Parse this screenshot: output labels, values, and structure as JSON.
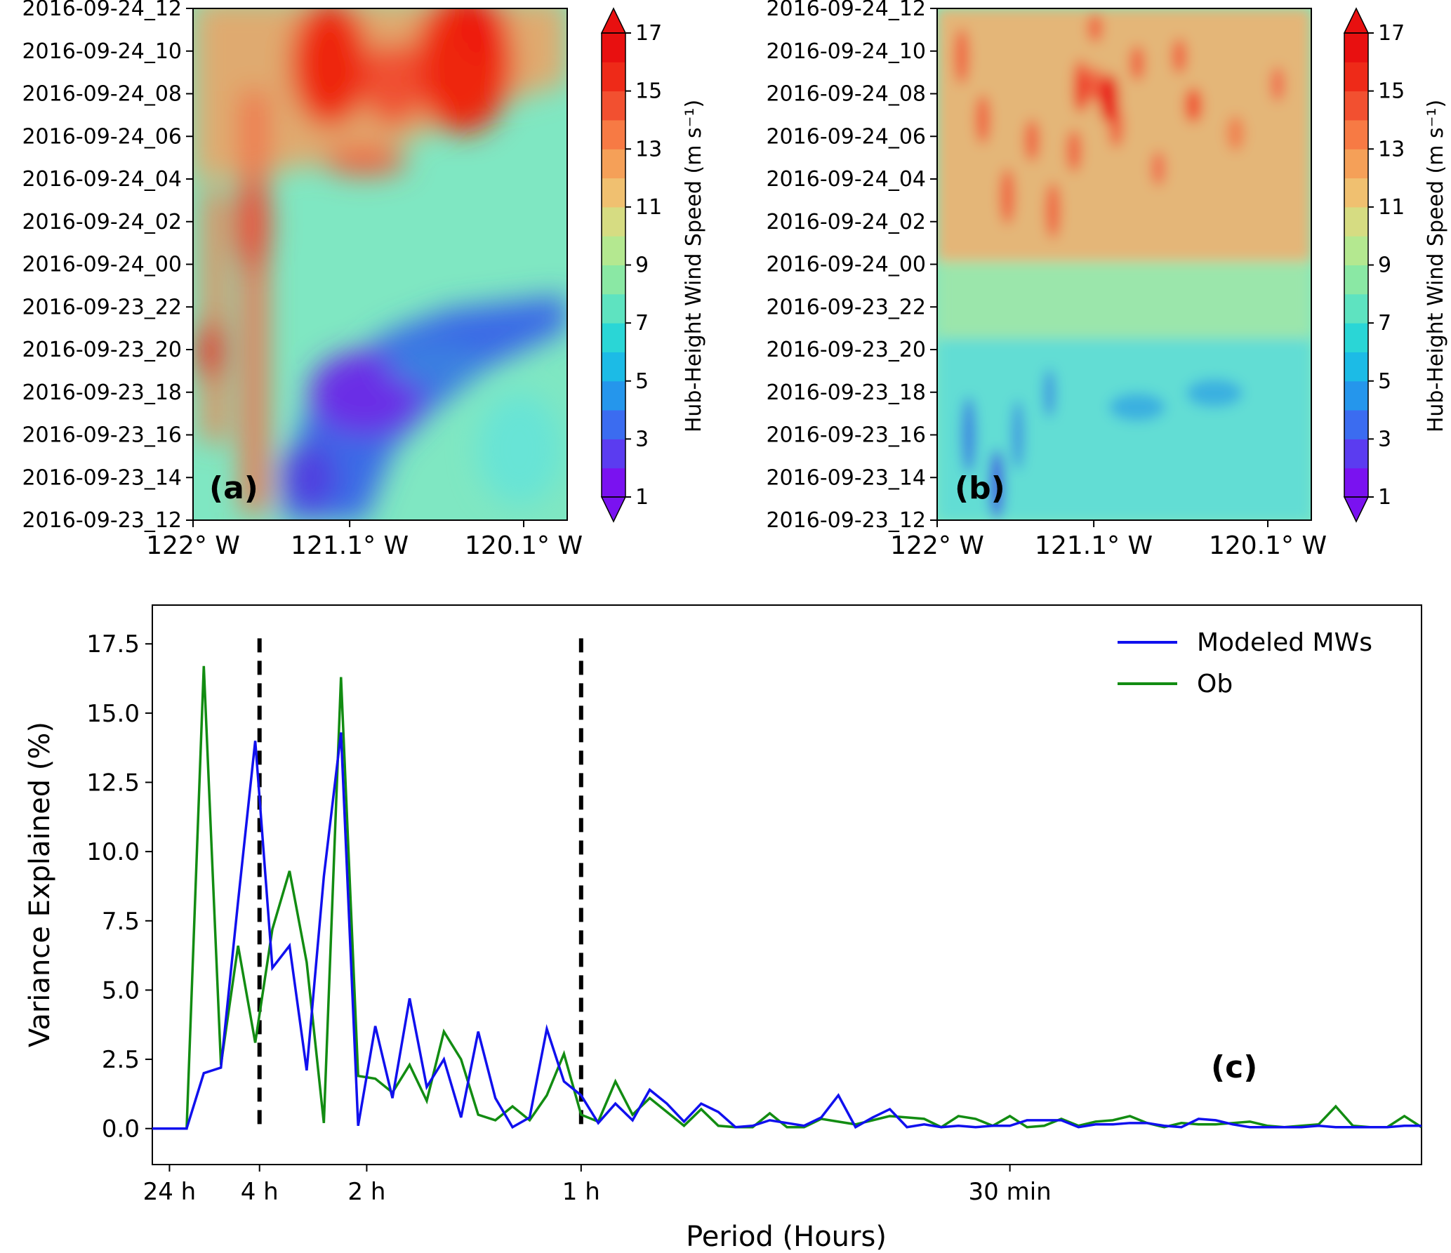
{
  "chart_data": [
    {
      "id": "a",
      "type": "heatmap",
      "panel_label": "(a)",
      "y_ticks": [
        "2016-09-24_12",
        "2016-09-24_10",
        "2016-09-24_08",
        "2016-09-24_06",
        "2016-09-24_04",
        "2016-09-24_02",
        "2016-09-24_00",
        "2016-09-23_22",
        "2016-09-23_20",
        "2016-09-23_18",
        "2016-09-23_16",
        "2016-09-23_14",
        "2016-09-23_12"
      ],
      "x_ticks": [
        "122° W",
        "121.1° W",
        "120.1° W"
      ],
      "x_tick_values": [
        -122.0,
        -121.1,
        -120.1
      ],
      "xlim": [
        -122.0,
        -119.85
      ],
      "ylim_hours": [
        0,
        24
      ],
      "colorbar": {
        "label": "Hub-Height Wind Speed (m s⁻¹)",
        "ticks": [
          "1",
          "3",
          "5",
          "7",
          "9",
          "11",
          "13",
          "15",
          "17"
        ],
        "range": [
          1,
          17
        ],
        "extend": "both"
      },
      "description_features": [
        {
          "kind": "low",
          "lon": -121.0,
          "hour": 5,
          "value": 2
        },
        {
          "kind": "high",
          "lon": -120.5,
          "hour": 21.5,
          "value": 17
        },
        {
          "kind": "high",
          "lon": -121.2,
          "hour": 20,
          "value": 16
        },
        {
          "kind": "high",
          "lon": -121.65,
          "hour": 12,
          "value": 15
        }
      ]
    },
    {
      "id": "b",
      "type": "heatmap",
      "panel_label": "(b)",
      "y_ticks": [
        "2016-09-24_12",
        "2016-09-24_10",
        "2016-09-24_08",
        "2016-09-24_06",
        "2016-09-24_04",
        "2016-09-24_02",
        "2016-09-24_00",
        "2016-09-23_22",
        "2016-09-23_20",
        "2016-09-23_18",
        "2016-09-23_16",
        "2016-09-23_14",
        "2016-09-23_12"
      ],
      "x_ticks": [
        "122° W",
        "121.1° W",
        "120.1° W"
      ],
      "x_tick_values": [
        -122.0,
        -121.1,
        -120.1
      ],
      "xlim": [
        -122.0,
        -119.85
      ],
      "ylim_hours": [
        0,
        24
      ],
      "colorbar": {
        "label": "Hub-Height Wind Speed (m s⁻¹)",
        "ticks": [
          "1",
          "3",
          "5",
          "7",
          "9",
          "11",
          "13",
          "15",
          "17"
        ],
        "range": [
          1,
          17
        ],
        "extend": "both"
      },
      "description_features": [
        {
          "kind": "high",
          "lon": -121.0,
          "hour": 20.5,
          "value": 16
        },
        {
          "kind": "low",
          "lon": -121.75,
          "hour": 1.5,
          "value": 3
        },
        {
          "kind": "mid",
          "lon": -120.8,
          "hour": 7,
          "value": 7
        }
      ]
    },
    {
      "id": "c",
      "type": "line",
      "panel_label": "(c)",
      "xlabel": "Period (Hours)",
      "ylabel": "Variance Explained (%)",
      "ylim": [
        -1.3,
        18.9
      ],
      "y_ticks": [
        "0.0",
        "2.5",
        "5.0",
        "7.5",
        "10.0",
        "12.5",
        "15.0",
        "17.5"
      ],
      "y_tick_values": [
        0,
        2.5,
        5,
        7.5,
        10,
        12.5,
        15,
        17.5
      ],
      "x_ticks": [
        "24 h",
        "4 h",
        "2 h",
        "1 h",
        "30 min"
      ],
      "x_tick_values": [
        0.04,
        0.25,
        0.5,
        1.0,
        2.0
      ],
      "xlim": [
        0,
        2.96
      ],
      "x_unit": "cycles per hour",
      "vlines": [
        0.25,
        1.0
      ],
      "legend": {
        "placement": "top-right"
      },
      "series": [
        {
          "name": "Modeled MWs",
          "color": "#1010ee",
          "x": [
            0,
            0.08,
            0.12,
            0.16,
            0.2,
            0.24,
            0.28,
            0.32,
            0.36,
            0.4,
            0.44,
            0.48,
            0.52,
            0.56,
            0.6,
            0.64,
            0.68,
            0.72,
            0.76,
            0.8,
            0.84,
            0.88,
            0.92,
            0.96,
            1.0,
            1.04,
            1.08,
            1.12,
            1.16,
            1.2,
            1.24,
            1.28,
            1.32,
            1.36,
            1.4,
            1.44,
            1.48,
            1.52,
            1.56,
            1.6,
            1.64,
            1.68,
            1.72,
            1.76,
            1.8,
            1.84,
            1.88,
            1.92,
            1.96,
            2.0,
            2.04,
            2.08,
            2.12,
            2.16,
            2.2,
            2.24,
            2.28,
            2.32,
            2.36,
            2.4,
            2.44,
            2.48,
            2.52,
            2.56,
            2.6,
            2.64,
            2.68,
            2.72,
            2.76,
            2.8,
            2.84,
            2.88,
            2.92,
            2.96
          ],
          "values": [
            0,
            0,
            2.0,
            2.2,
            8.2,
            14.0,
            5.8,
            6.6,
            2.1,
            9.1,
            14.3,
            0.1,
            3.7,
            1.1,
            4.7,
            1.5,
            2.5,
            0.4,
            3.5,
            1.1,
            0.05,
            0.4,
            3.6,
            1.7,
            1.2,
            0.2,
            0.9,
            0.3,
            1.4,
            0.9,
            0.25,
            0.9,
            0.6,
            0.05,
            0.1,
            0.3,
            0.2,
            0.1,
            0.4,
            1.2,
            0.05,
            0.4,
            0.7,
            0.05,
            0.15,
            0.05,
            0.1,
            0.05,
            0.1,
            0.1,
            0.3,
            0.3,
            0.3,
            0.05,
            0.15,
            0.15,
            0.2,
            0.2,
            0.1,
            0.05,
            0.35,
            0.3,
            0.15,
            0.05,
            0.05,
            0.05,
            0.05,
            0.1,
            0.05,
            0.05,
            0.05,
            0.05,
            0.1,
            0.1
          ]
        },
        {
          "name": "Ob",
          "color": "#128c12",
          "x": [
            0,
            0.08,
            0.12,
            0.16,
            0.2,
            0.24,
            0.28,
            0.32,
            0.36,
            0.4,
            0.44,
            0.48,
            0.52,
            0.56,
            0.6,
            0.64,
            0.68,
            0.72,
            0.76,
            0.8,
            0.84,
            0.88,
            0.92,
            0.96,
            1.0,
            1.04,
            1.08,
            1.12,
            1.16,
            1.2,
            1.24,
            1.28,
            1.32,
            1.36,
            1.4,
            1.44,
            1.48,
            1.52,
            1.56,
            1.6,
            1.64,
            1.68,
            1.72,
            1.76,
            1.8,
            1.84,
            1.88,
            1.92,
            1.96,
            2.0,
            2.04,
            2.08,
            2.12,
            2.16,
            2.2,
            2.24,
            2.28,
            2.32,
            2.36,
            2.4,
            2.44,
            2.48,
            2.52,
            2.56,
            2.6,
            2.64,
            2.68,
            2.72,
            2.76,
            2.8,
            2.84,
            2.88,
            2.92,
            2.96
          ],
          "values": [
            0,
            0,
            16.7,
            2.3,
            6.6,
            3.1,
            7.2,
            9.3,
            6.0,
            0.2,
            16.3,
            1.9,
            1.8,
            1.3,
            2.3,
            1.0,
            3.5,
            2.5,
            0.5,
            0.3,
            0.8,
            0.3,
            1.2,
            2.7,
            0.5,
            0.25,
            1.7,
            0.5,
            1.1,
            0.6,
            0.1,
            0.7,
            0.1,
            0.05,
            0.05,
            0.55,
            0.05,
            0.05,
            0.35,
            0.25,
            0.15,
            0.3,
            0.45,
            0.4,
            0.35,
            0.05,
            0.45,
            0.35,
            0.1,
            0.45,
            0.05,
            0.1,
            0.35,
            0.1,
            0.25,
            0.3,
            0.45,
            0.2,
            0.05,
            0.2,
            0.15,
            0.15,
            0.2,
            0.25,
            0.1,
            0.05,
            0.1,
            0.15,
            0.8,
            0.1,
            0.05,
            0.05,
            0.45,
            0.05
          ]
        }
      ]
    }
  ]
}
